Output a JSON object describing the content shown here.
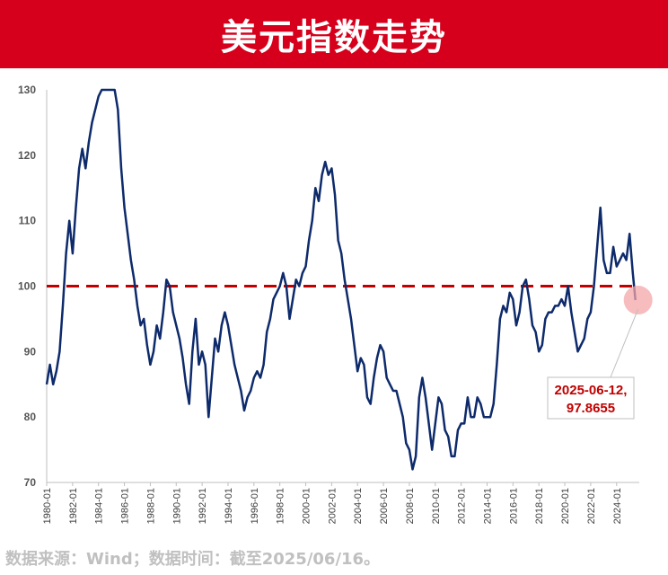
{
  "header": {
    "title": "美元指数走势"
  },
  "footer": {
    "source": "数据来源：Wind；数据时间：截至2025/06/16。"
  },
  "colors": {
    "header_bg": "#d6001c",
    "line": "#0d2a6b",
    "reference_line": "#c00000",
    "highlight": "#f3a5a8"
  },
  "chart_data": {
    "type": "line",
    "title": "美元指数走势",
    "xlabel": "",
    "ylabel": "",
    "ylim": [
      70,
      130
    ],
    "yticks": [
      70,
      80,
      90,
      100,
      110,
      120,
      130
    ],
    "xlim": [
      1980.0,
      2025.75
    ],
    "xtick_labels": [
      "1980-01",
      "1982-01",
      "1984-01",
      "1986-01",
      "1988-01",
      "1990-01",
      "1992-01",
      "1994-01",
      "1996-01",
      "1998-01",
      "2000-01",
      "2002-01",
      "2004-01",
      "2006-01",
      "2008-01",
      "2010-01",
      "2012-01",
      "2014-01",
      "2016-01",
      "2018-01",
      "2020-01",
      "2022-01",
      "2024-01"
    ],
    "grid": false,
    "reference_line": {
      "y": 100,
      "style": "dashed"
    },
    "annotation": {
      "date": "2025-06-12",
      "value": 97.8655,
      "lines": [
        "2025-06-12,",
        "97.8655"
      ]
    },
    "series": [
      {
        "points": [
          [
            1980.0,
            85
          ],
          [
            1980.25,
            88
          ],
          [
            1980.5,
            85
          ],
          [
            1980.75,
            87
          ],
          [
            1981.0,
            90
          ],
          [
            1981.25,
            97
          ],
          [
            1981.5,
            105
          ],
          [
            1981.75,
            110
          ],
          [
            1982.0,
            105
          ],
          [
            1982.25,
            112
          ],
          [
            1982.5,
            118
          ],
          [
            1982.75,
            121
          ],
          [
            1983.0,
            118
          ],
          [
            1983.25,
            122
          ],
          [
            1983.5,
            125
          ],
          [
            1983.75,
            127
          ],
          [
            1984.0,
            129
          ],
          [
            1984.25,
            130
          ],
          [
            1984.5,
            130
          ],
          [
            1984.75,
            130
          ],
          [
            1985.0,
            130
          ],
          [
            1985.25,
            130
          ],
          [
            1985.5,
            127
          ],
          [
            1985.75,
            118
          ],
          [
            1986.0,
            112
          ],
          [
            1986.25,
            108
          ],
          [
            1986.5,
            104
          ],
          [
            1986.75,
            101
          ],
          [
            1987.0,
            97
          ],
          [
            1987.25,
            94
          ],
          [
            1987.5,
            95
          ],
          [
            1987.75,
            91
          ],
          [
            1988.0,
            88
          ],
          [
            1988.25,
            90
          ],
          [
            1988.5,
            94
          ],
          [
            1988.75,
            92
          ],
          [
            1989.0,
            96
          ],
          [
            1989.25,
            101
          ],
          [
            1989.5,
            100
          ],
          [
            1989.75,
            96
          ],
          [
            1990.0,
            94
          ],
          [
            1990.25,
            92
          ],
          [
            1990.5,
            89
          ],
          [
            1990.75,
            85
          ],
          [
            1991.0,
            82
          ],
          [
            1991.25,
            90
          ],
          [
            1991.5,
            95
          ],
          [
            1991.75,
            88
          ],
          [
            1992.0,
            90
          ],
          [
            1992.25,
            88
          ],
          [
            1992.5,
            80
          ],
          [
            1992.75,
            86
          ],
          [
            1993.0,
            92
          ],
          [
            1993.25,
            90
          ],
          [
            1993.5,
            94
          ],
          [
            1993.75,
            96
          ],
          [
            1994.0,
            94
          ],
          [
            1994.25,
            91
          ],
          [
            1994.5,
            88
          ],
          [
            1994.75,
            86
          ],
          [
            1995.0,
            84
          ],
          [
            1995.25,
            81
          ],
          [
            1995.5,
            83
          ],
          [
            1995.75,
            84
          ],
          [
            1996.0,
            86
          ],
          [
            1996.25,
            87
          ],
          [
            1996.5,
            86
          ],
          [
            1996.75,
            88
          ],
          [
            1997.0,
            93
          ],
          [
            1997.25,
            95
          ],
          [
            1997.5,
            98
          ],
          [
            1997.75,
            99
          ],
          [
            1998.0,
            100
          ],
          [
            1998.25,
            102
          ],
          [
            1998.5,
            100
          ],
          [
            1998.75,
            95
          ],
          [
            1999.0,
            98
          ],
          [
            1999.25,
            101
          ],
          [
            1999.5,
            100
          ],
          [
            1999.75,
            102
          ],
          [
            2000.0,
            103
          ],
          [
            2000.25,
            107
          ],
          [
            2000.5,
            110
          ],
          [
            2000.75,
            115
          ],
          [
            2001.0,
            113
          ],
          [
            2001.25,
            117
          ],
          [
            2001.5,
            119
          ],
          [
            2001.75,
            117
          ],
          [
            2002.0,
            118
          ],
          [
            2002.25,
            114
          ],
          [
            2002.5,
            107
          ],
          [
            2002.75,
            105
          ],
          [
            2003.0,
            101
          ],
          [
            2003.25,
            98
          ],
          [
            2003.5,
            95
          ],
          [
            2003.75,
            91
          ],
          [
            2004.0,
            87
          ],
          [
            2004.25,
            89
          ],
          [
            2004.5,
            88
          ],
          [
            2004.75,
            83
          ],
          [
            2005.0,
            82
          ],
          [
            2005.25,
            86
          ],
          [
            2005.5,
            89
          ],
          [
            2005.75,
            91
          ],
          [
            2006.0,
            90
          ],
          [
            2006.25,
            86
          ],
          [
            2006.5,
            85
          ],
          [
            2006.75,
            84
          ],
          [
            2007.0,
            84
          ],
          [
            2007.25,
            82
          ],
          [
            2007.5,
            80
          ],
          [
            2007.75,
            76
          ],
          [
            2008.0,
            75
          ],
          [
            2008.25,
            72
          ],
          [
            2008.5,
            74
          ],
          [
            2008.75,
            83
          ],
          [
            2009.0,
            86
          ],
          [
            2009.25,
            83
          ],
          [
            2009.5,
            79
          ],
          [
            2009.75,
            75
          ],
          [
            2010.0,
            79
          ],
          [
            2010.25,
            83
          ],
          [
            2010.5,
            82
          ],
          [
            2010.75,
            78
          ],
          [
            2011.0,
            77
          ],
          [
            2011.25,
            74
          ],
          [
            2011.5,
            74
          ],
          [
            2011.75,
            78
          ],
          [
            2012.0,
            79
          ],
          [
            2012.25,
            79
          ],
          [
            2012.5,
            83
          ],
          [
            2012.75,
            80
          ],
          [
            2013.0,
            80
          ],
          [
            2013.25,
            83
          ],
          [
            2013.5,
            82
          ],
          [
            2013.75,
            80
          ],
          [
            2014.0,
            80
          ],
          [
            2014.25,
            80
          ],
          [
            2014.5,
            82
          ],
          [
            2014.75,
            88
          ],
          [
            2015.0,
            95
          ],
          [
            2015.25,
            97
          ],
          [
            2015.5,
            96
          ],
          [
            2015.75,
            99
          ],
          [
            2016.0,
            98
          ],
          [
            2016.25,
            94
          ],
          [
            2016.5,
            96
          ],
          [
            2016.75,
            100
          ],
          [
            2017.0,
            101
          ],
          [
            2017.25,
            98
          ],
          [
            2017.5,
            94
          ],
          [
            2017.75,
            93
          ],
          [
            2018.0,
            90
          ],
          [
            2018.25,
            91
          ],
          [
            2018.5,
            95
          ],
          [
            2018.75,
            96
          ],
          [
            2019.0,
            96
          ],
          [
            2019.25,
            97
          ],
          [
            2019.5,
            97
          ],
          [
            2019.75,
            98
          ],
          [
            2020.0,
            97
          ],
          [
            2020.25,
            100
          ],
          [
            2020.5,
            96
          ],
          [
            2020.75,
            93
          ],
          [
            2021.0,
            90
          ],
          [
            2021.25,
            91
          ],
          [
            2021.5,
            92
          ],
          [
            2021.75,
            95
          ],
          [
            2022.0,
            96
          ],
          [
            2022.25,
            100
          ],
          [
            2022.5,
            106
          ],
          [
            2022.75,
            112
          ],
          [
            2023.0,
            104
          ],
          [
            2023.25,
            102
          ],
          [
            2023.5,
            102
          ],
          [
            2023.75,
            106
          ],
          [
            2024.0,
            103
          ],
          [
            2024.25,
            104
          ],
          [
            2024.5,
            105
          ],
          [
            2024.75,
            104
          ],
          [
            2025.0,
            108
          ],
          [
            2025.25,
            102
          ],
          [
            2025.45,
            97.8655
          ]
        ]
      }
    ]
  }
}
